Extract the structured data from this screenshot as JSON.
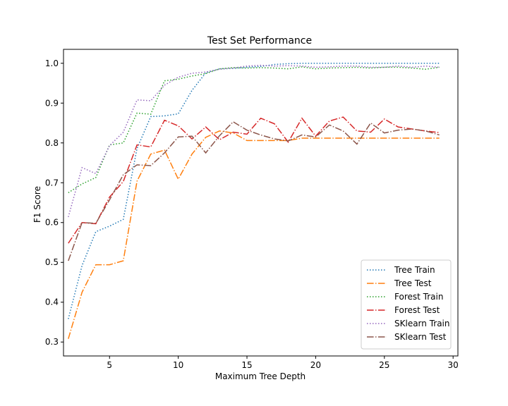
{
  "chart_data": {
    "type": "line",
    "title": "Test Set Performance",
    "xlabel": "Maximum Tree Depth",
    "ylabel": "F1 Score",
    "xlim": [
      1.65,
      30.35
    ],
    "ylim": [
      0.265,
      1.035
    ],
    "xticks": [
      5,
      10,
      15,
      20,
      25,
      30
    ],
    "yticks": [
      0.3,
      0.4,
      0.5,
      0.6,
      0.7,
      0.8,
      0.9,
      1.0
    ],
    "legend_position": "lower right",
    "x": [
      2,
      3,
      4,
      5,
      6,
      7,
      8,
      9,
      10,
      11,
      12,
      13,
      14,
      15,
      16,
      17,
      18,
      19,
      20,
      21,
      22,
      23,
      24,
      25,
      26,
      27,
      28,
      29
    ],
    "series": [
      {
        "name": "Tree Train",
        "color": "#1f77b4",
        "dash": "dotted",
        "values": [
          0.358,
          0.492,
          0.577,
          0.591,
          0.608,
          0.786,
          0.866,
          0.868,
          0.873,
          0.932,
          0.976,
          0.986,
          0.987,
          0.99,
          0.992,
          0.997,
          0.999,
          1.0,
          1.0,
          1.0,
          1.0,
          1.0,
          1.0,
          1.0,
          1.0,
          1.0,
          1.0,
          1.0
        ]
      },
      {
        "name": "Tree Test",
        "color": "#ff7f0e",
        "dash": "dashdot",
        "values": [
          0.308,
          0.425,
          0.494,
          0.494,
          0.504,
          0.704,
          0.772,
          0.782,
          0.709,
          0.772,
          0.814,
          0.83,
          0.825,
          0.806,
          0.806,
          0.806,
          0.806,
          0.812,
          0.812,
          0.812,
          0.812,
          0.812,
          0.812,
          0.812,
          0.812,
          0.812,
          0.812,
          0.812
        ]
      },
      {
        "name": "Forest Train",
        "color": "#2ca02c",
        "dash": "dotted",
        "values": [
          0.675,
          0.697,
          0.713,
          0.795,
          0.8,
          0.875,
          0.872,
          0.956,
          0.96,
          0.968,
          0.974,
          0.986,
          0.989,
          0.988,
          0.989,
          0.988,
          0.986,
          0.991,
          0.986,
          0.988,
          0.989,
          0.99,
          0.988,
          0.99,
          0.99,
          0.988,
          0.985,
          0.99
        ]
      },
      {
        "name": "Forest Test",
        "color": "#d62728",
        "dash": "dashdot",
        "values": [
          0.548,
          0.6,
          0.597,
          0.664,
          0.703,
          0.795,
          0.79,
          0.857,
          0.843,
          0.81,
          0.84,
          0.808,
          0.827,
          0.822,
          0.862,
          0.848,
          0.802,
          0.862,
          0.817,
          0.855,
          0.865,
          0.83,
          0.827,
          0.86,
          0.84,
          0.835,
          0.83,
          0.826
        ]
      },
      {
        "name": "SKlearn Train",
        "color": "#9467bd",
        "dash": "dotted",
        "values": [
          0.614,
          0.738,
          0.723,
          0.793,
          0.827,
          0.908,
          0.906,
          0.945,
          0.965,
          0.975,
          0.978,
          0.985,
          0.988,
          0.993,
          0.995,
          0.993,
          0.994,
          0.993,
          0.99,
          0.991,
          0.993,
          0.993,
          0.99,
          0.99,
          0.993,
          0.99,
          0.993,
          0.99
        ]
      },
      {
        "name": "SKlearn Test",
        "color": "#8c564b",
        "dash": "dashdot",
        "values": [
          0.504,
          0.6,
          0.598,
          0.657,
          0.72,
          0.745,
          0.743,
          0.775,
          0.815,
          0.817,
          0.775,
          0.818,
          0.853,
          0.832,
          0.82,
          0.81,
          0.805,
          0.82,
          0.815,
          0.845,
          0.83,
          0.797,
          0.85,
          0.825,
          0.832,
          0.835,
          0.83,
          0.82
        ]
      }
    ]
  }
}
